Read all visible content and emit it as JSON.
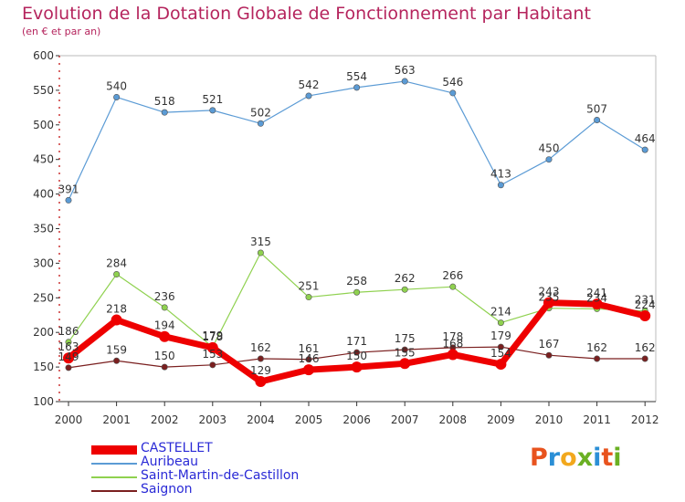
{
  "title": "Evolution de la Dotation Globale de Fonctionnement par Habitant",
  "subtitle": "(en € et par an)",
  "logo": {
    "text": "Proxiti",
    "letters": [
      "P",
      "r",
      "o",
      "x",
      "i",
      "t",
      "i"
    ],
    "colors": [
      "#e8531e",
      "#2b8fd6",
      "#f2a81d",
      "#6ab023",
      "#2b8fd6",
      "#e8531e",
      "#6ab023"
    ]
  },
  "chart_data": {
    "type": "line",
    "title": "Evolution de la Dotation Globale de Fonctionnement par Habitant",
    "subtitle": "(en € et par an)",
    "xlabel": "",
    "ylabel": "",
    "ylim": [
      100,
      600
    ],
    "yticks": [
      100,
      150,
      200,
      250,
      300,
      350,
      400,
      450,
      500,
      550,
      600
    ],
    "categories": [
      "2000",
      "2001",
      "2002",
      "2003",
      "2004",
      "2005",
      "2006",
      "2007",
      "2008",
      "2009",
      "2010",
      "2011",
      "2012"
    ],
    "legend_position": "bottom-left",
    "series": [
      {
        "name": "CASTELLET",
        "color": "#ee0000",
        "emphasis": true,
        "values": [
          163,
          218,
          194,
          178,
          129,
          146,
          150,
          155,
          168,
          154,
          243,
          241,
          224
        ],
        "labels": [
          "163",
          "218",
          "194",
          "178",
          "129",
          "146",
          "150",
          "155",
          "168",
          "154",
          "243",
          "241",
          "224"
        ]
      },
      {
        "name": "Auribeau",
        "color": "#5b9bd5",
        "emphasis": false,
        "values": [
          391,
          540,
          518,
          521,
          502,
          542,
          554,
          563,
          546,
          413,
          450,
          507,
          464
        ],
        "labels": [
          "391",
          "540",
          "518",
          "521",
          "502",
          "542",
          "554",
          "563",
          "546",
          "413",
          "450",
          "507",
          "464"
        ]
      },
      {
        "name": "Saint-Martin-de-Castillon",
        "color": "#8fd14f",
        "emphasis": false,
        "values": [
          186,
          284,
          236,
          179,
          315,
          251,
          258,
          262,
          266,
          214,
          235,
          234,
          231
        ],
        "labels": [
          "186",
          "284",
          "236",
          "179",
          "315",
          "251",
          "258",
          "262",
          "266",
          "214",
          "235",
          "234",
          "231"
        ]
      },
      {
        "name": "Saignon",
        "color": "#7a1f1f",
        "emphasis": false,
        "values": [
          149,
          159,
          150,
          153,
          162,
          161,
          171,
          175,
          178,
          179,
          167,
          162,
          162
        ],
        "labels": [
          "149",
          "159",
          "150",
          "153",
          "162",
          "161",
          "171",
          "175",
          "178",
          "179",
          "167",
          "162",
          "162"
        ]
      }
    ]
  }
}
